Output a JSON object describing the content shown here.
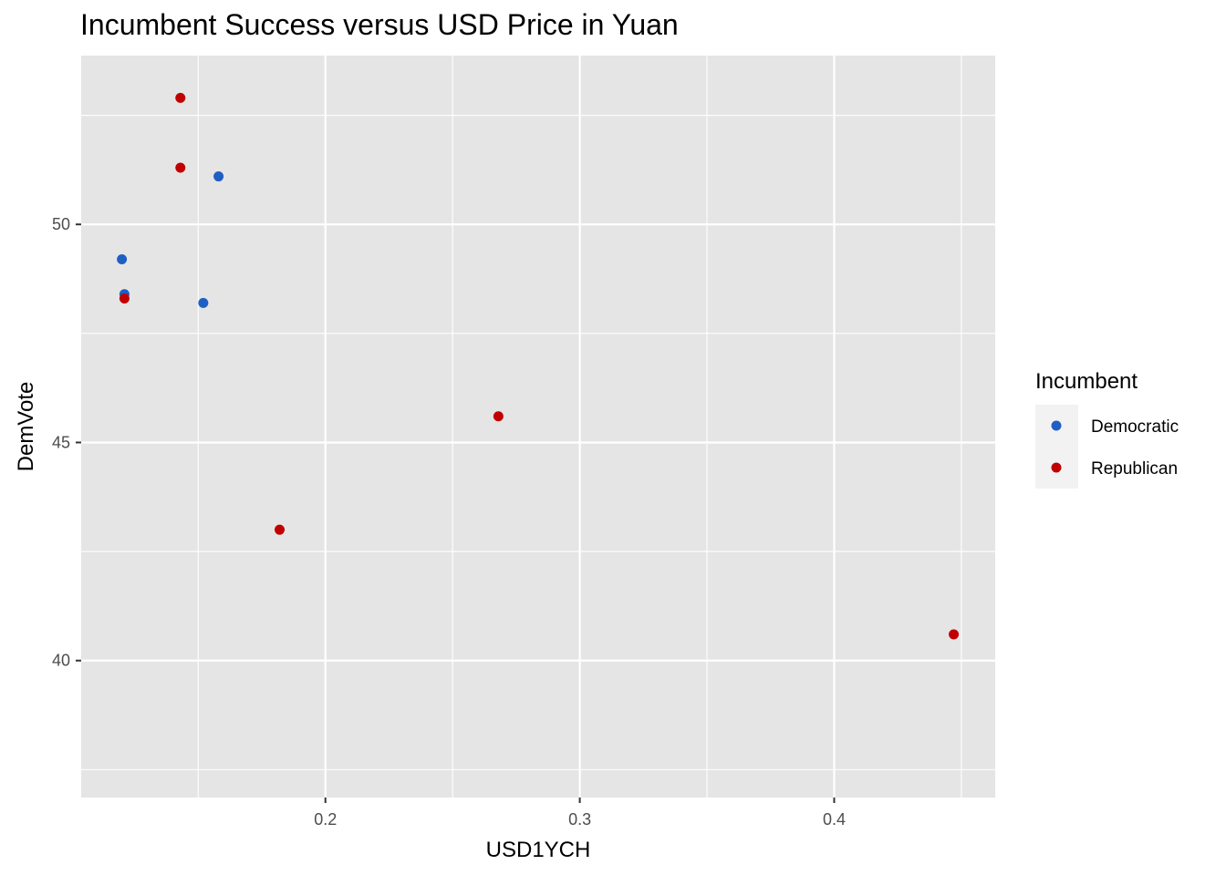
{
  "chart_data": {
    "type": "scatter",
    "title": "Incumbent Success versus USD Price in Yuan",
    "xlabel": "USD1YCH",
    "ylabel": "DemVote",
    "xlim": [
      0.104,
      0.4633
    ],
    "ylim": [
      36.86,
      53.87
    ],
    "x_ticks": [
      0.2,
      0.3,
      0.4
    ],
    "x_tick_labels": [
      "0.2",
      "0.3",
      "0.4"
    ],
    "y_ticks": [
      40,
      45,
      50
    ],
    "y_tick_labels": [
      "40",
      "45",
      "50"
    ],
    "grid": true,
    "legend": {
      "title": "Incumbent",
      "position": "right",
      "entries": [
        {
          "name": "Democratic",
          "color": "#1f5fc4"
        },
        {
          "name": "Republican",
          "color": "#c00000"
        }
      ]
    },
    "series": [
      {
        "name": "Democratic",
        "color": "#1f5fc4",
        "points": [
          {
            "x": 0.12,
            "y": 49.2
          },
          {
            "x": 0.121,
            "y": 48.4
          },
          {
            "x": 0.152,
            "y": 48.2
          },
          {
            "x": 0.158,
            "y": 51.1
          }
        ]
      },
      {
        "name": "Republican",
        "color": "#c00000",
        "points": [
          {
            "x": 0.143,
            "y": 52.9
          },
          {
            "x": 0.143,
            "y": 51.3
          },
          {
            "x": 0.121,
            "y": 48.3
          },
          {
            "x": 0.182,
            "y": 43.0
          },
          {
            "x": 0.268,
            "y": 45.6
          },
          {
            "x": 0.447,
            "y": 40.6
          }
        ]
      }
    ]
  }
}
